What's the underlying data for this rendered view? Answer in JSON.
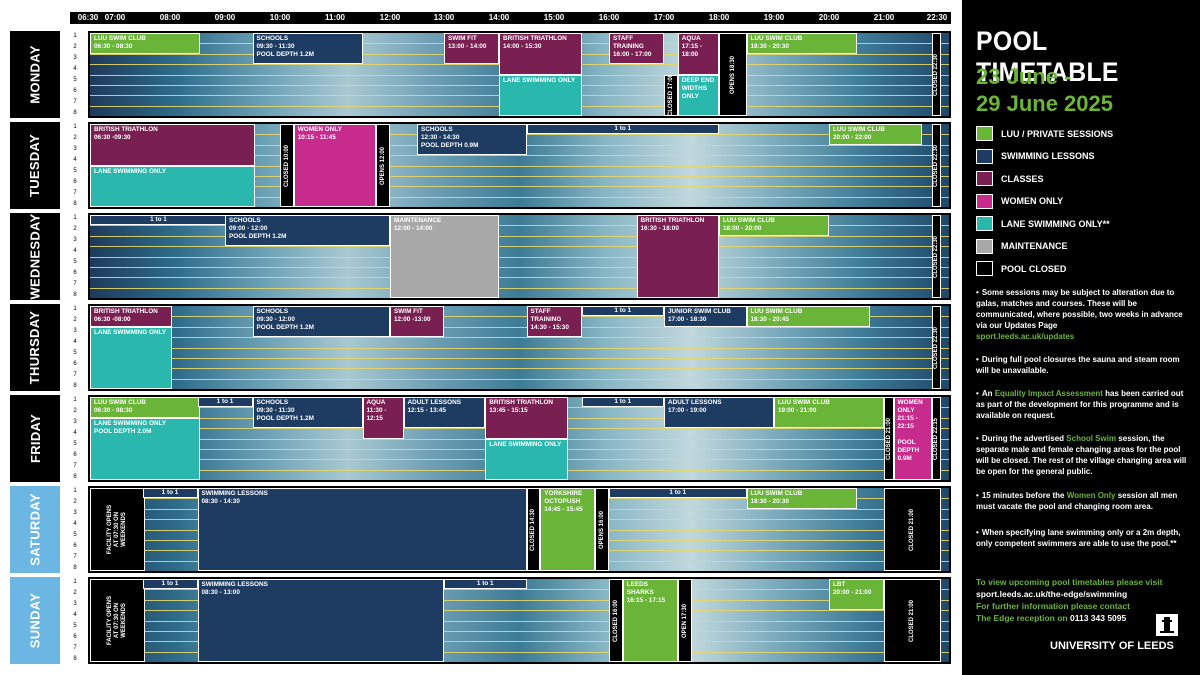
{
  "times": [
    "06:30",
    "07:00",
    "08:00",
    "09:00",
    "10:00",
    "11:00",
    "12:00",
    "13:00",
    "14:00",
    "15:00",
    "16:00",
    "17:00",
    "18:00",
    "19:00",
    "20:00",
    "21:00",
    "22:30"
  ],
  "lanes": [
    "1",
    "2",
    "3",
    "4",
    "5",
    "6",
    "7",
    "8"
  ],
  "days": [
    {
      "name": "MONDAY",
      "label_color": "#000",
      "blocks": [
        {
          "text": "LUU SWIM CLUB\n06:30 - 08:30",
          "start": "06:30",
          "end": "08:30",
          "lane_from": 1,
          "lane_to": 2,
          "kind": "luu"
        },
        {
          "text": "SCHOOLS\n09:30 - 11:30\nPOOL DEPTH 1.2M",
          "start": "09:30",
          "end": "11:30",
          "lane_from": 1,
          "lane_to": 3,
          "kind": "sw"
        },
        {
          "text": "SWIM FIT\n13:00 - 14:00",
          "start": "13:00",
          "end": "14:00",
          "lane_from": 1,
          "lane_to": 3,
          "kind": "cl"
        },
        {
          "text": "BRITISH TRIATHLON\n14:00 - 15:30",
          "start": "14:00",
          "end": "15:30",
          "lane_from": 1,
          "lane_to": 4,
          "kind": "cl"
        },
        {
          "text": "STAFF TRAINING\n16:00 - 17:00",
          "start": "16:00",
          "end": "17:00",
          "lane_from": 1,
          "lane_to": 3,
          "kind": "cl"
        },
        {
          "text": "AQUA\n17:15 - 18:00",
          "start": "17:15",
          "end": "18:00",
          "lane_from": 1,
          "lane_to": 4,
          "kind": "cl"
        },
        {
          "text": "LUU SWIM CLUB\n18:30 - 20:30",
          "start": "18:30",
          "end": "20:30",
          "lane_from": 1,
          "lane_to": 2,
          "kind": "luu"
        },
        {
          "text": "LANE SWIMMING ONLY",
          "start": "14:00",
          "end": "15:30",
          "lane_from": 5,
          "lane_to": 8,
          "kind": "ls"
        },
        {
          "text": "DEEP END\nWIDTHS ONLY",
          "start": "17:15",
          "end": "18:00",
          "lane_from": 5,
          "lane_to": 8,
          "kind": "ls"
        }
      ],
      "closures": [
        {
          "text": "CLOSED 17:00",
          "start": "17:00",
          "end": "17:15",
          "lane_from": 5,
          "lane_to": 8
        },
        {
          "text": "OPENS 18:30",
          "start": "18:00",
          "end": "18:30",
          "lane_from": 1,
          "lane_to": 8
        },
        {
          "text": "CLOSED 22:30",
          "start": "22:15",
          "end": "22:30",
          "lane_from": 1,
          "lane_to": 8
        }
      ]
    },
    {
      "name": "TUESDAY",
      "label_color": "#000",
      "blocks": [
        {
          "text": "BRITISH TRIATHLON\n06:30 -09:30",
          "start": "06:30",
          "end": "09:30",
          "lane_from": 1,
          "lane_to": 4,
          "kind": "cl"
        },
        {
          "text": "LANE SWIMMING ONLY",
          "start": "06:30",
          "end": "09:30",
          "lane_from": 5,
          "lane_to": 8,
          "kind": "ls"
        },
        {
          "text": "WOMEN ONLY\n10:15 - 11:45",
          "start": "10:15",
          "end": "11:45",
          "lane_from": 1,
          "lane_to": 8,
          "kind": "wo"
        },
        {
          "text": "SCHOOLS\n12:30 - 14:30\nPOOL DEPTH 0.9M",
          "start": "12:30",
          "end": "14:30",
          "lane_from": 1,
          "lane_to": 3,
          "kind": "sw"
        },
        {
          "text": "1 to 1",
          "start": "14:30",
          "end": "18:00",
          "lane_from": 1,
          "lane_to": 1,
          "kind": "sw",
          "center": true
        },
        {
          "text": "LUU SWIM CLUB\n20:00 - 22:00",
          "start": "20:00",
          "end": "22:00",
          "lane_from": 1,
          "lane_to": 2,
          "kind": "luu"
        }
      ],
      "closures": [
        {
          "text": "CLOSED 10:00",
          "start": "10:00",
          "end": "10:15",
          "lane_from": 1,
          "lane_to": 8
        },
        {
          "text": "OPENS 12:00",
          "start": "11:45",
          "end": "12:00",
          "lane_from": 1,
          "lane_to": 8
        },
        {
          "text": "CLOSED 22:30",
          "start": "22:15",
          "end": "22:30",
          "lane_from": 1,
          "lane_to": 8
        }
      ]
    },
    {
      "name": "WEDNESDAY",
      "label_color": "#000",
      "blocks": [
        {
          "text": "1 to 1",
          "start": "06:30",
          "end": "09:00",
          "lane_from": 1,
          "lane_to": 1,
          "kind": "sw",
          "center": true
        },
        {
          "text": "SCHOOLS\n09:00 - 12:00\nPOOL DEPTH 1.2M",
          "start": "09:00",
          "end": "12:00",
          "lane_from": 1,
          "lane_to": 3,
          "kind": "sw"
        },
        {
          "text": "MAINTENANCE\n12:00 - 14:00",
          "start": "12:00",
          "end": "14:00",
          "lane_from": 1,
          "lane_to": 8,
          "kind": "mt"
        },
        {
          "text": "BRITISH TRIATHLON\n16:30 - 18:00",
          "start": "16:30",
          "end": "18:00",
          "lane_from": 1,
          "lane_to": 8,
          "kind": "cl"
        },
        {
          "text": "LUU SWIM CLUB\n18:00 - 20:00",
          "start": "18:00",
          "end": "20:00",
          "lane_from": 1,
          "lane_to": 2,
          "kind": "luu"
        }
      ],
      "closures": [
        {
          "text": "CLOSED 22:30",
          "start": "22:15",
          "end": "22:30",
          "lane_from": 1,
          "lane_to": 8
        }
      ]
    },
    {
      "name": "THURSDAY",
      "label_color": "#000",
      "blocks": [
        {
          "text": "BRITISH TRIATHLON\n06:30 -08:00",
          "start": "06:30",
          "end": "08:00",
          "lane_from": 1,
          "lane_to": 2,
          "kind": "cl"
        },
        {
          "text": "LANE SWIMMING ONLY",
          "start": "06:30",
          "end": "08:00",
          "lane_from": 3,
          "lane_to": 8,
          "kind": "ls"
        },
        {
          "text": "SCHOOLS\n09:30 - 12:00\nPOOL DEPTH 1.2M",
          "start": "09:30",
          "end": "12:00",
          "lane_from": 1,
          "lane_to": 3,
          "kind": "sw"
        },
        {
          "text": "SWIM FIT\n12:00 -13:00",
          "start": "12:00",
          "end": "13:00",
          "lane_from": 1,
          "lane_to": 3,
          "kind": "cl"
        },
        {
          "text": "STAFF\nTRAINING\n14:30 - 15:30",
          "start": "14:30",
          "end": "15:30",
          "lane_from": 1,
          "lane_to": 3,
          "kind": "cl"
        },
        {
          "text": "1 to 1",
          "start": "15:30",
          "end": "17:00",
          "lane_from": 1,
          "lane_to": 1,
          "kind": "sw",
          "center": true
        },
        {
          "text": "JUNIOR SWIM CLUB\n17:00 - 18:30",
          "start": "17:00",
          "end": "18:30",
          "lane_from": 1,
          "lane_to": 2,
          "kind": "sw"
        },
        {
          "text": "LUU SWIM CLUB\n18:30 - 20:45",
          "start": "18:30",
          "end": "20:45",
          "lane_from": 1,
          "lane_to": 2,
          "kind": "luu"
        }
      ],
      "closures": [
        {
          "text": "CLOSED 22:30",
          "start": "22:15",
          "end": "22:30",
          "lane_from": 1,
          "lane_to": 8
        }
      ]
    },
    {
      "name": "FRIDAY",
      "label_color": "#000",
      "blocks": [
        {
          "text": "LUU SWIM CLUB\n06:30 - 08:30",
          "start": "06:30",
          "end": "08:30",
          "lane_from": 1,
          "lane_to": 2,
          "kind": "luu"
        },
        {
          "text": "LANE SWIMMING ONLY\nPOOL DEPTH 2.0M",
          "start": "06:30",
          "end": "08:30",
          "lane_from": 3,
          "lane_to": 8,
          "kind": "ls"
        },
        {
          "text": "1 to 1",
          "start": "08:30",
          "end": "09:30",
          "lane_from": 1,
          "lane_to": 1,
          "kind": "sw",
          "center": true
        },
        {
          "text": "SCHOOLS\n09:30 - 11:30\nPOOL DEPTH 1.2M",
          "start": "09:30",
          "end": "11:30",
          "lane_from": 1,
          "lane_to": 3,
          "kind": "sw"
        },
        {
          "text": "AQUA\n11:30 - 12:15",
          "start": "11:30",
          "end": "12:15",
          "lane_from": 1,
          "lane_to": 4,
          "kind": "cl"
        },
        {
          "text": "ADULT LESSONS\n12:15 - 13:45",
          "start": "12:15",
          "end": "13:45",
          "lane_from": 1,
          "lane_to": 3,
          "kind": "sw"
        },
        {
          "text": "BRITISH TRIATHLON\n13:45 - 15:15",
          "start": "13:45",
          "end": "15:15",
          "lane_from": 1,
          "lane_to": 4,
          "kind": "cl"
        },
        {
          "text": "LANE SWIMMING ONLY",
          "start": "13:45",
          "end": "15:15",
          "lane_from": 5,
          "lane_to": 8,
          "kind": "ls"
        },
        {
          "text": "1 to 1",
          "start": "15:30",
          "end": "17:00",
          "lane_from": 1,
          "lane_to": 1,
          "kind": "sw",
          "center": true
        },
        {
          "text": "ADULT LESSONS\n17:00 - 19:00",
          "start": "17:00",
          "end": "19:00",
          "lane_from": 1,
          "lane_to": 3,
          "kind": "sw"
        },
        {
          "text": "LUU SWIM CLUB\n19:00 - 21:00",
          "start": "19:00",
          "end": "21:00",
          "lane_from": 1,
          "lane_to": 3,
          "kind": "luu"
        },
        {
          "text": "WOMEN ONLY\n21:15 - 22:15\n\nPOOL DEPTH\n0.9M",
          "start": "21:15",
          "end": "22:15",
          "lane_from": 1,
          "lane_to": 8,
          "kind": "wo"
        }
      ],
      "closures": [
        {
          "text": "CLOSED 21:00",
          "start": "21:00",
          "end": "21:15",
          "lane_from": 1,
          "lane_to": 8
        },
        {
          "text": "CLOSED 22:15",
          "start": "22:15",
          "end": "22:30",
          "lane_from": 1,
          "lane_to": 8
        }
      ]
    },
    {
      "name": "SATURDAY",
      "label_color": "#6cb6e4",
      "blocks": [
        {
          "text": "1 to 1",
          "start": "07:30",
          "end": "08:30",
          "lane_from": 1,
          "lane_to": 1,
          "kind": "sw",
          "center": true
        },
        {
          "text": "SWIMMING LESSONS\n08:30 - 14:30",
          "start": "08:30",
          "end": "14:30",
          "lane_from": 1,
          "lane_to": 8,
          "kind": "sw"
        },
        {
          "text": "YORKSHIRE\nOCTOPUSH\n14:45 - 15:45",
          "start": "14:45",
          "end": "15:45",
          "lane_from": 1,
          "lane_to": 8,
          "kind": "luu"
        },
        {
          "text": "1 to 1",
          "start": "16:00",
          "end": "18:30",
          "lane_from": 1,
          "lane_to": 1,
          "kind": "sw",
          "center": true
        },
        {
          "text": "LUU SWIM CLUB\n18:30 - 20:30",
          "start": "18:30",
          "end": "20:30",
          "lane_from": 1,
          "lane_to": 2,
          "kind": "luu"
        }
      ],
      "closures": [
        {
          "text": "FACILITY OPENS AT 07:30 ON WEEKENDS",
          "start": "06:30",
          "end": "07:30",
          "lane_from": 1,
          "lane_to": 8,
          "multi": true
        },
        {
          "text": "CLOSED 14:30",
          "start": "14:30",
          "end": "14:45",
          "lane_from": 1,
          "lane_to": 8
        },
        {
          "text": "OPENS 16:00",
          "start": "15:45",
          "end": "16:00",
          "lane_from": 1,
          "lane_to": 8
        },
        {
          "text": "CLOSED 21:00",
          "start": "21:00",
          "end": "22:30",
          "lane_from": 1,
          "lane_to": 8
        }
      ]
    },
    {
      "name": "SUNDAY",
      "label_color": "#6cb6e4",
      "blocks": [
        {
          "text": "1 to 1",
          "start": "07:30",
          "end": "08:30",
          "lane_from": 1,
          "lane_to": 1,
          "kind": "sw",
          "center": true
        },
        {
          "text": "SWIMMING LESSONS\n08:30 - 13:00",
          "start": "08:30",
          "end": "13:00",
          "lane_from": 1,
          "lane_to": 8,
          "kind": "sw"
        },
        {
          "text": "1 to 1",
          "start": "13:00",
          "end": "14:30",
          "lane_from": 1,
          "lane_to": 1,
          "kind": "sw",
          "center": true
        },
        {
          "text": "LEEDS SHARKS\n16:15 - 17:15",
          "start": "16:15",
          "end": "17:15",
          "lane_from": 1,
          "lane_to": 8,
          "kind": "luu"
        },
        {
          "text": "LBT\n20:00 - 21:00",
          "start": "20:00",
          "end": "21:00",
          "lane_from": 1,
          "lane_to": 3,
          "kind": "luu"
        }
      ],
      "closures": [
        {
          "text": "FACILITY OPENS AT 07:30 ON WEEKENDS",
          "start": "06:30",
          "end": "07:30",
          "lane_from": 1,
          "lane_to": 8,
          "multi": true
        },
        {
          "text": "CLOSED 16:00",
          "start": "16:00",
          "end": "16:15",
          "lane_from": 1,
          "lane_to": 8
        },
        {
          "text": "OPEN 17:30",
          "start": "17:15",
          "end": "17:30",
          "lane_from": 1,
          "lane_to": 8
        },
        {
          "text": "CLOSED 21:00",
          "start": "21:00",
          "end": "22:30",
          "lane_from": 1,
          "lane_to": 8
        }
      ]
    }
  ],
  "colors": {
    "luu": "#6ab437",
    "sw": "#1e3b62",
    "cl": "#7a1f52",
    "wo": "#c72b8c",
    "ls": "#2ab8ae",
    "mt": "#a8a8a8",
    "closed": "#000"
  },
  "side": {
    "title": "POOL TIMETABLE",
    "date_line1": "23 June -",
    "date_line2": "29 June 2025",
    "legend": [
      {
        "label": "LUU / PRIVATE SESSIONS",
        "color": "#6ab437"
      },
      {
        "label": "SWIMMING LESSONS",
        "color": "#1e3b62"
      },
      {
        "label": "CLASSES",
        "color": "#7a1f52"
      },
      {
        "label": "WOMEN ONLY",
        "color": "#c72b8c"
      },
      {
        "label": "LANE SWIMMING ONLY**",
        "color": "#2ab8ae"
      },
      {
        "label": "MAINTENANCE",
        "color": "#a8a8a8"
      },
      {
        "label": "POOL CLOSED",
        "color": "#000"
      }
    ],
    "note1": "Some sessions may be subject to alteration due to galas, matches and courses. These will be communicated, where possible, two weeks in advance via our Updates Page",
    "note1_link": "sport.leeds.ac.uk/updates",
    "note2": "During full pool closures the sauna and steam room will be unavailable.",
    "note3_a": "An ",
    "note3_link": "Equality Impact Assessment",
    "note3_b": " has been carried out as part of the development for this programme and is available on request.",
    "note4_a": "During the advertised ",
    "note4_link": "School Swim",
    "note4_b": " session, the separate male and female changing areas for the pool will be closed. The rest of the village changing area will be open for the general public.",
    "note5_a": "15 minutes before the ",
    "note5_link": "Women Only",
    "note5_b": " session all men must vacate the pool and changing room area.",
    "note6": "When specifying lane swimming only or a 2m depth, only competent swimmers are able to use the pool.**",
    "foot1": "To view upcoming pool timetables please visit",
    "foot2": "sport.leeds.ac.uk/the-edge/swimming",
    "foot3": "For further information please contact",
    "foot4_a": "The Edge reception on ",
    "foot4_b": "0113 343 5095",
    "logo_text": "UNIVERSITY OF LEEDS"
  }
}
